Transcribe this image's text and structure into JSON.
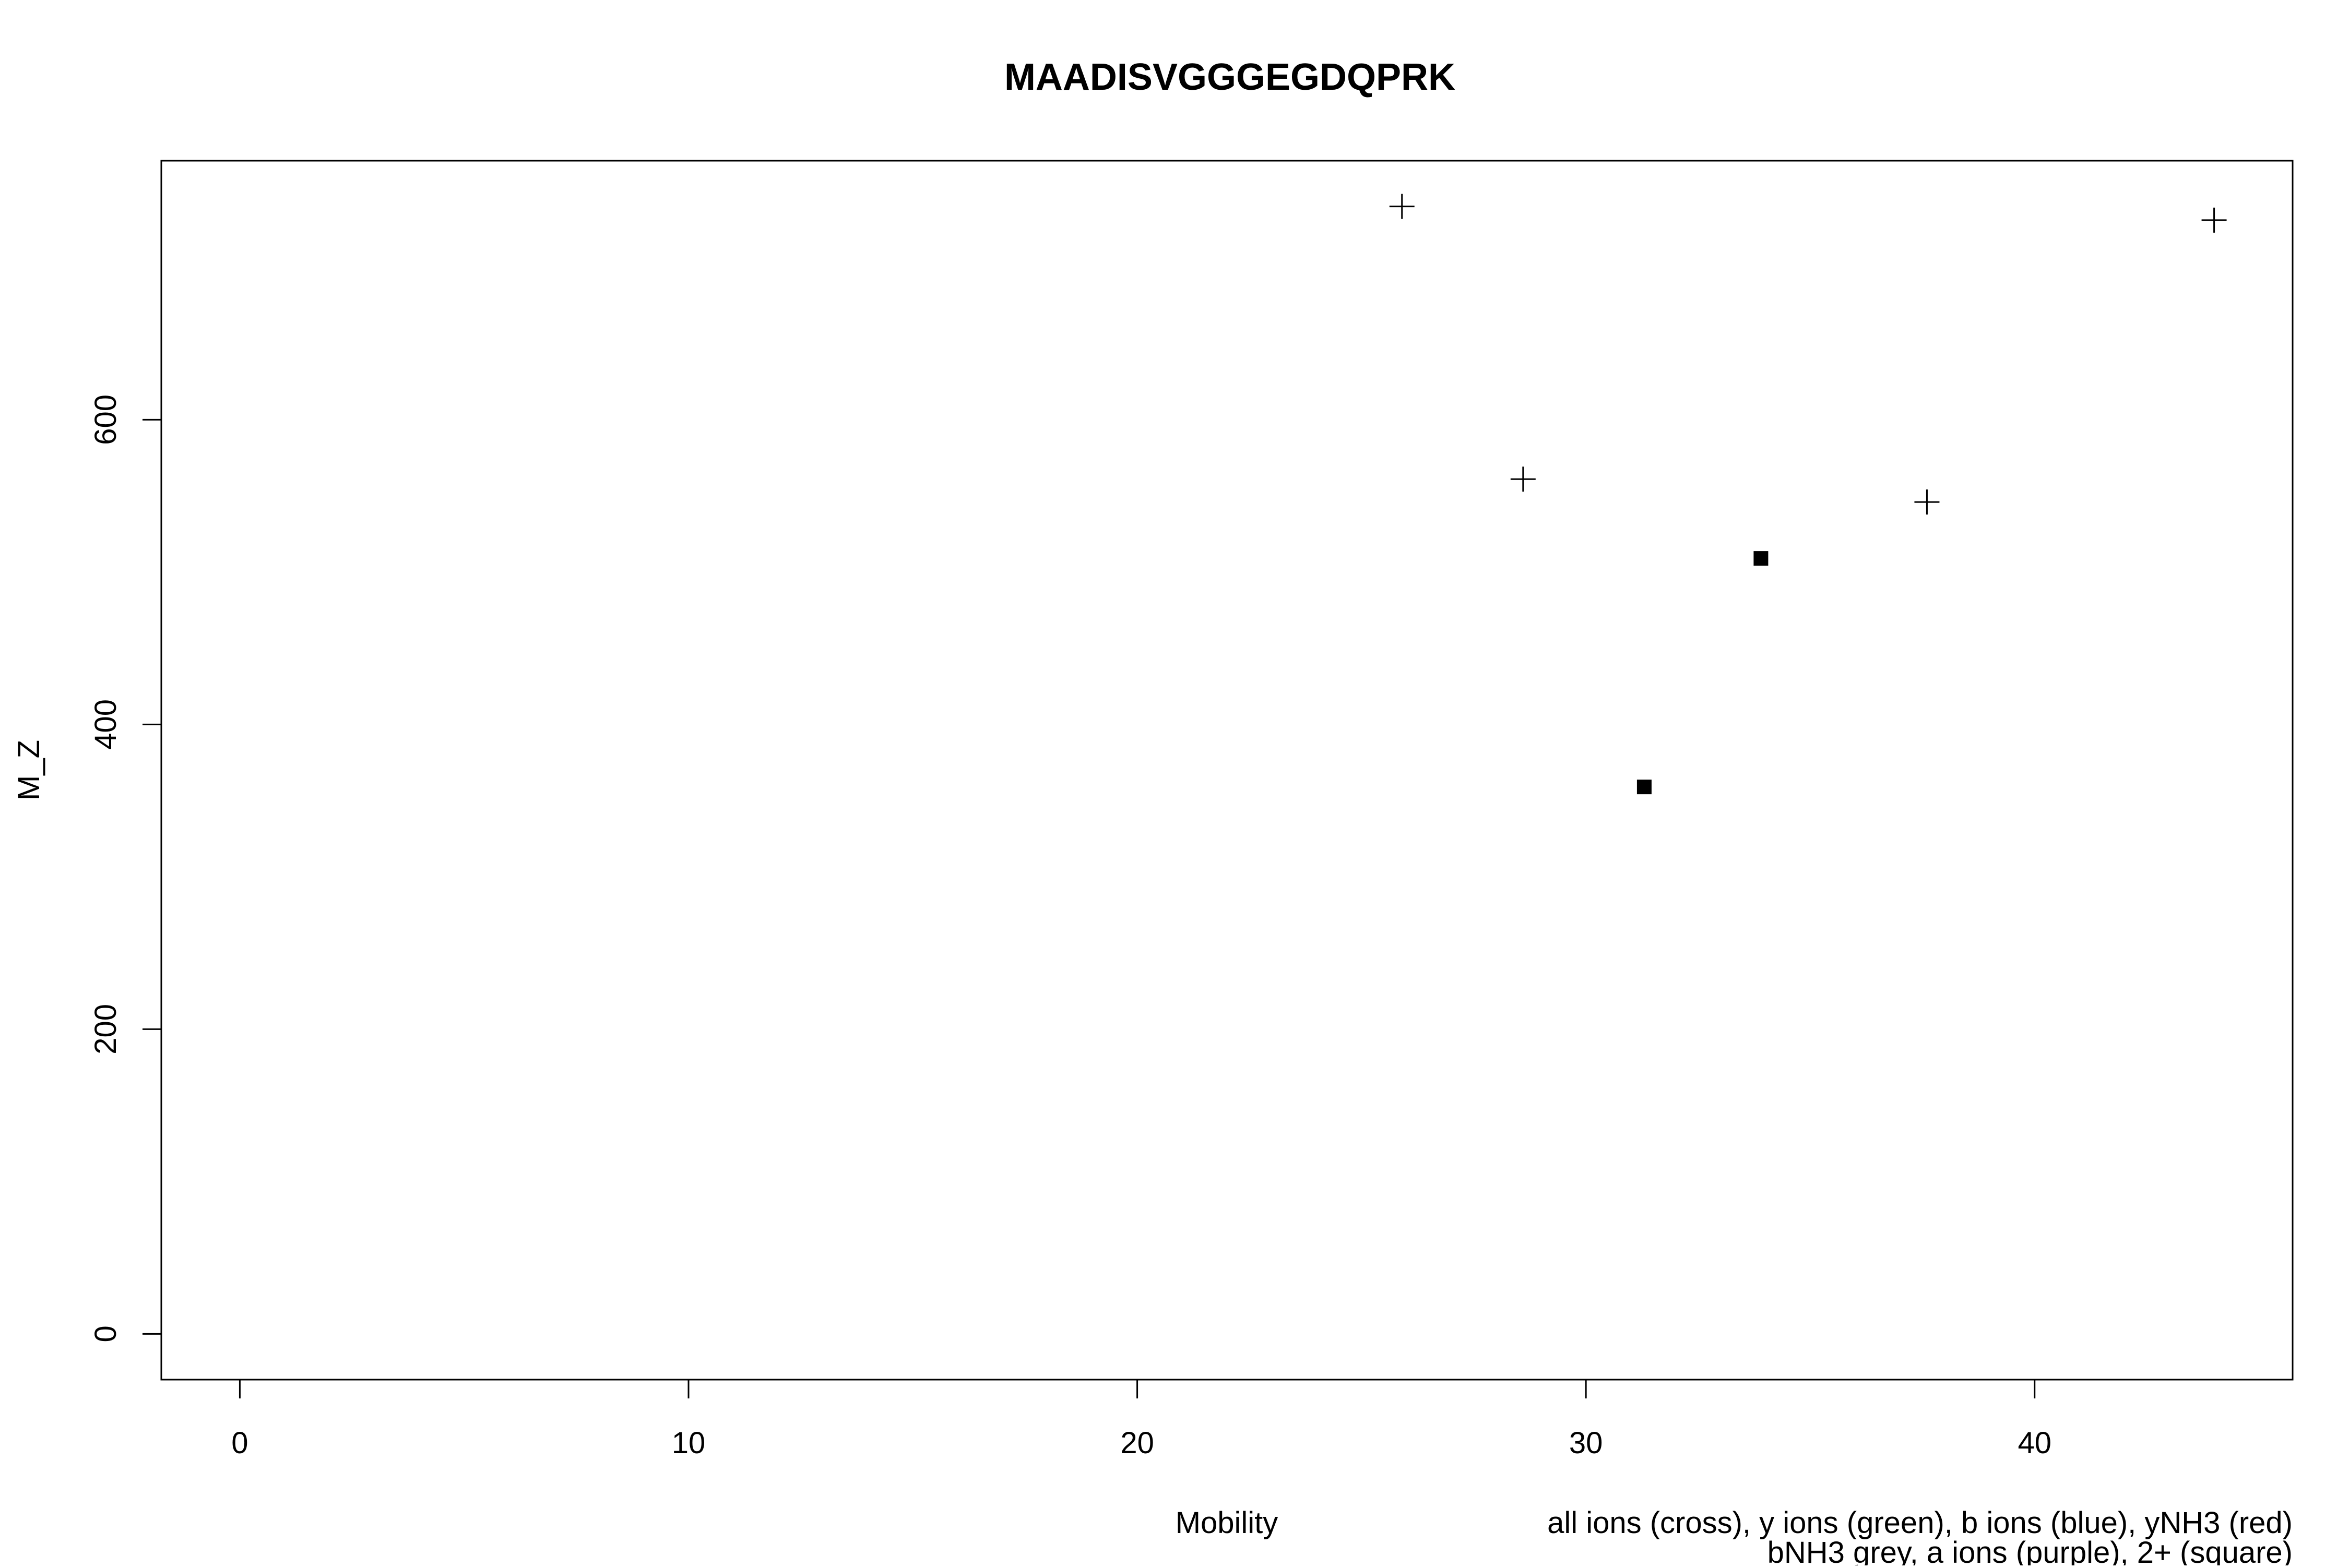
{
  "chart_data": {
    "type": "scatter",
    "title": "MAADISVGGGEGDQPRK",
    "xlabel": "Mobility",
    "ylabel": "M_Z",
    "xlim": [
      -1.75,
      45.75
    ],
    "ylim": [
      -30,
      770
    ],
    "x_ticks": [
      0,
      10,
      20,
      30,
      40
    ],
    "y_ticks": [
      0,
      200,
      400,
      600
    ],
    "grid": false,
    "legend_notes": [
      "all ions (cross), y ions (green), b ions (blue), yNH3 (red)",
      "bNH3 grey, a ions (purple), 2+ (square)"
    ],
    "series": [
      {
        "marker": "cross",
        "color": "#000000",
        "points": [
          {
            "x": 25.9,
            "y": 740
          },
          {
            "x": 28.6,
            "y": 561
          },
          {
            "x": 37.6,
            "y": 546
          },
          {
            "x": 44.0,
            "y": 731
          }
        ]
      },
      {
        "marker": "square",
        "color": "#000000",
        "points": [
          {
            "x": 33.9,
            "y": 509
          },
          {
            "x": 31.3,
            "y": 359
          }
        ]
      }
    ]
  }
}
